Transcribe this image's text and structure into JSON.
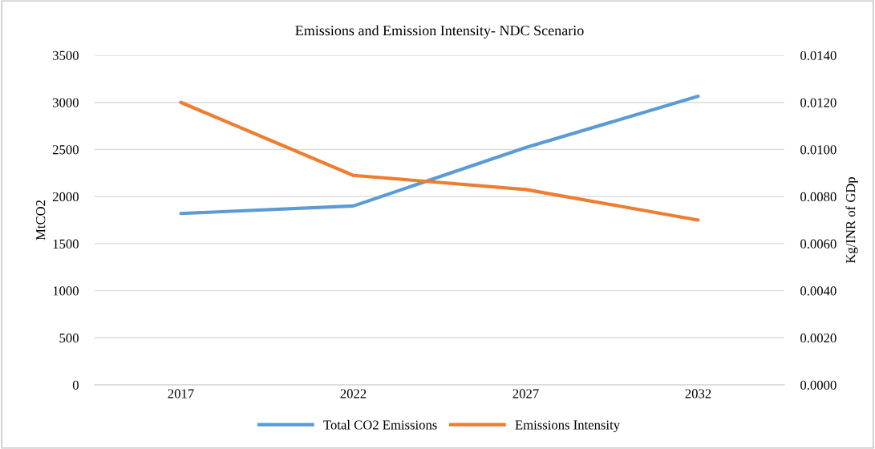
{
  "chart_data": {
    "type": "line",
    "title": "Emissions and Emission Intensity- NDC Scenario",
    "ylabel": "MtCO2",
    "y2label": "Kg/INR of GDp",
    "categories": [
      "2017",
      "2022",
      "2027",
      "2032"
    ],
    "series": [
      {
        "name": "Total CO2 Emissions",
        "color": "#5b9bd5",
        "values": [
          1820,
          1900,
          2520,
          3065
        ]
      },
      {
        "name": "Emissions Intensity",
        "color": "#ed7d31",
        "values": [
          0.012,
          0.0089,
          0.0083,
          0.007
        ],
        "axis": "y2"
      }
    ],
    "ylim": [
      0,
      3500
    ],
    "yticks": [
      0,
      500,
      1000,
      1500,
      2000,
      2500,
      3000,
      3500
    ],
    "y2lim": [
      0,
      0.014
    ],
    "y2ticks": [
      {
        "value": 0,
        "label": "0.0000"
      },
      {
        "value": 0.002,
        "label": "0.0020"
      },
      {
        "value": 0.004,
        "label": "0.0040"
      },
      {
        "value": 0.006,
        "label": "0.0060"
      },
      {
        "value": 0.008,
        "label": "0.0080"
      },
      {
        "value": 0.01,
        "label": "0.0100"
      },
      {
        "value": 0.012,
        "label": "0.0120"
      },
      {
        "value": 0.014,
        "label": "0.0140"
      }
    ],
    "grid": "y",
    "legend": "bottom",
    "marker": "none",
    "line_style": "solid"
  }
}
